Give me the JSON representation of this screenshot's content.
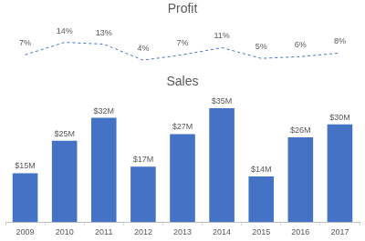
{
  "chart_data": [
    {
      "type": "line",
      "title": "Profit",
      "categories": [
        "2009",
        "2010",
        "2011",
        "2012",
        "2013",
        "2014",
        "2015",
        "2016",
        "2017"
      ],
      "values": [
        7,
        14,
        13,
        4,
        7,
        11,
        5,
        6,
        8
      ],
      "value_labels": [
        "7%",
        "14%",
        "13%",
        "4%",
        "7%",
        "11%",
        "5%",
        "6%",
        "8%"
      ],
      "color": "#4472c4",
      "line_style": "dashed",
      "data_labels": true,
      "tick_labels": false,
      "grid": false
    },
    {
      "type": "bar",
      "title": "Sales",
      "categories": [
        "2009",
        "2010",
        "2011",
        "2012",
        "2013",
        "2014",
        "2015",
        "2016",
        "2017"
      ],
      "values": [
        15,
        25,
        32,
        17,
        27,
        35,
        14,
        26,
        30
      ],
      "value_labels": [
        "$15M",
        "$25M",
        "$32M",
        "$17M",
        "$27M",
        "$35M",
        "$14M",
        "$26M",
        "$30M"
      ],
      "color": "#4472c4",
      "data_labels": true,
      "tick_labels": "x",
      "grid": false
    }
  ]
}
